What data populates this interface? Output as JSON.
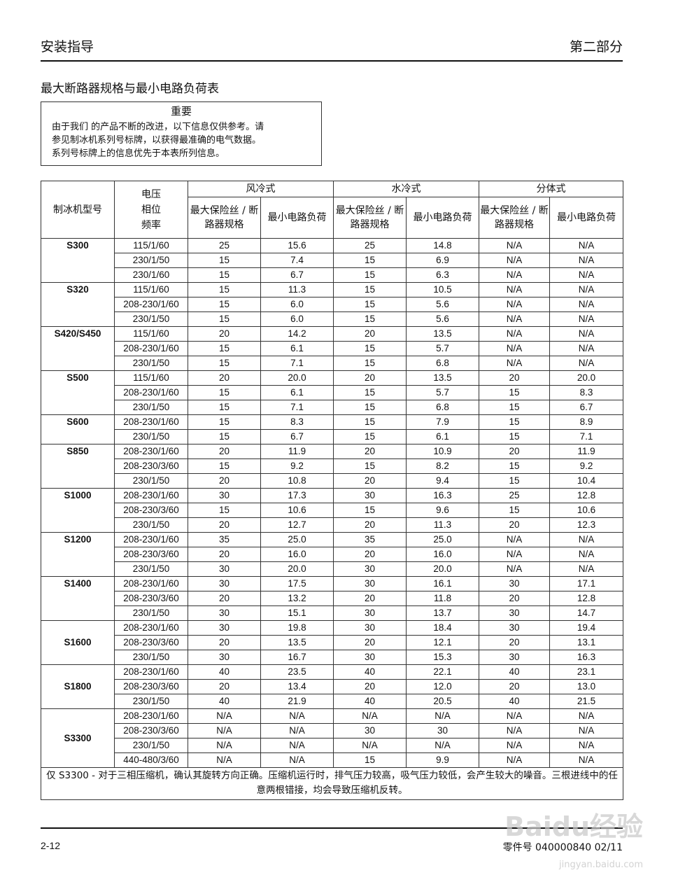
{
  "header": {
    "left": "安装指导",
    "right": "第二部分"
  },
  "title": "最大断路器规格与最小电路负荷表",
  "notice": {
    "heading": "重要",
    "lines": [
      "由于我们 的产品不断的改进，以下信息仅供参考。请",
      "参见制冰机系列号标牌，以获得最准确的电气数据。",
      "系列号标牌上的信息优先于本表所列信息。"
    ]
  },
  "table": {
    "headers": {
      "model": "制冰机型号",
      "voltage": [
        "电压",
        "相位",
        "频率"
      ],
      "groups": [
        "风冷式",
        "水冷式",
        "分体式"
      ],
      "sub": [
        "最大保险丝 / 断路器规格",
        "最小电路负荷",
        "最大保险丝 / 断路器规格",
        "最小电路负荷",
        "最大保险丝 / 断路器规格",
        "最小电路负荷"
      ]
    },
    "models": [
      {
        "model": "S300",
        "rows": [
          [
            "115/1/60",
            "25",
            "15.6",
            "25",
            "14.8",
            "N/A",
            "N/A"
          ],
          [
            "230/1/50",
            "15",
            "7.4",
            "15",
            "6.9",
            "N/A",
            "N/A"
          ],
          [
            "230/1/60",
            "15",
            "6.7",
            "15",
            "6.3",
            "N/A",
            "N/A"
          ]
        ]
      },
      {
        "model": "S320",
        "rows": [
          [
            "115/1/60",
            "15",
            "11.3",
            "15",
            "10.5",
            "N/A",
            "N/A"
          ],
          [
            "208-230/1/60",
            "15",
            "6.0",
            "15",
            "5.6",
            "N/A",
            "N/A"
          ],
          [
            "230/1/50",
            "15",
            "6.0",
            "15",
            "5.6",
            "N/A",
            "N/A"
          ]
        ]
      },
      {
        "model": "S420/S450",
        "rows": [
          [
            "115/1/60",
            "20",
            "14.2",
            "20",
            "13.5",
            "N/A",
            "N/A"
          ],
          [
            "208-230/1/60",
            "15",
            "6.1",
            "15",
            "5.7",
            "N/A",
            "N/A"
          ],
          [
            "230/1/50",
            "15",
            "7.1",
            "15",
            "6.8",
            "N/A",
            "N/A"
          ]
        ]
      },
      {
        "model": "S500",
        "rows": [
          [
            "115/1/60",
            "20",
            "20.0",
            "20",
            "13.5",
            "20",
            "20.0"
          ],
          [
            "208-230/1/60",
            "15",
            "6.1",
            "15",
            "5.7",
            "15",
            "8.3"
          ],
          [
            "230/1/50",
            "15",
            "7.1",
            "15",
            "6.8",
            "15",
            "6.7"
          ]
        ]
      },
      {
        "model": "S600",
        "rows": [
          [
            "208-230/1/60",
            "15",
            "8.3",
            "15",
            "7.9",
            "15",
            "8.9"
          ],
          [
            "230/1/50",
            "15",
            "6.7",
            "15",
            "6.1",
            "15",
            "7.1"
          ]
        ]
      },
      {
        "model": "S850",
        "rows": [
          [
            "208-230/1/60",
            "20",
            "11.9",
            "20",
            "10.9",
            "20",
            "11.9"
          ],
          [
            "208-230/3/60",
            "15",
            "9.2",
            "15",
            "8.2",
            "15",
            "9.2"
          ],
          [
            "230/1/50",
            "20",
            "10.8",
            "20",
            "9.4",
            "15",
            "10.4"
          ]
        ]
      },
      {
        "model": "S1000",
        "rows": [
          [
            "208-230/1/60",
            "30",
            "17.3",
            "30",
            "16.3",
            "25",
            "12.8"
          ],
          [
            "208-230/3/60",
            "15",
            "10.6",
            "15",
            "9.6",
            "15",
            "10.6"
          ],
          [
            "230/1/50",
            "20",
            "12.7",
            "20",
            "11.3",
            "20",
            "12.3"
          ]
        ]
      },
      {
        "model": "S1200",
        "rows": [
          [
            "208-230/1/60",
            "35",
            "25.0",
            "35",
            "25.0",
            "N/A",
            "N/A"
          ],
          [
            "208-230/3/60",
            "20",
            "16.0",
            "20",
            "16.0",
            "N/A",
            "N/A"
          ],
          [
            "230/1/50",
            "30",
            "20.0",
            "30",
            "20.0",
            "N/A",
            "N/A"
          ]
        ]
      },
      {
        "model": "S1400",
        "rows": [
          [
            "208-230/1/60",
            "30",
            "17.5",
            "30",
            "16.1",
            "30",
            "17.1"
          ],
          [
            "208-230/3/60",
            "20",
            "13.2",
            "20",
            "11.8",
            "20",
            "12.8"
          ],
          [
            "230/1/50",
            "30",
            "15.1",
            "30",
            "13.7",
            "30",
            "14.7"
          ]
        ]
      },
      {
        "model": "S1600",
        "rows": [
          [
            "208-230/1/60",
            "30",
            "19.8",
            "30",
            "18.4",
            "30",
            "19.4"
          ],
          [
            "208-230/3/60",
            "20",
            "13.5",
            "20",
            "12.1",
            "20",
            "13.1"
          ],
          [
            "230/1/50",
            "30",
            "16.7",
            "30",
            "15.3",
            "30",
            "16.3"
          ]
        ]
      },
      {
        "model": "S1800",
        "rows": [
          [
            "208-230/1/60",
            "40",
            "23.5",
            "40",
            "22.1",
            "40",
            "23.1"
          ],
          [
            "208-230/3/60",
            "20",
            "13.4",
            "20",
            "12.0",
            "20",
            "13.0"
          ],
          [
            "230/1/50",
            "40",
            "21.9",
            "40",
            "20.5",
            "40",
            "21.5"
          ]
        ]
      },
      {
        "model": "S3300",
        "rows": [
          [
            "208-230/1/60",
            "N/A",
            "N/A",
            "N/A",
            "N/A",
            "N/A",
            "N/A"
          ],
          [
            "208-230/3/60",
            "N/A",
            "N/A",
            "30",
            "30",
            "N/A",
            "N/A"
          ],
          [
            "230/1/50",
            "N/A",
            "N/A",
            "N/A",
            "N/A",
            "N/A",
            "N/A"
          ],
          [
            "440-480/3/60",
            "N/A",
            "N/A",
            "15",
            "9.9",
            "N/A",
            "N/A"
          ]
        ]
      }
    ],
    "note": "仅 S3300 - 对于三相压缩机，确认其旋转方向正确。压缩机运行时，排气压力较高，吸气压力较低，会产生较大的噪音。三根进线中的任意两根错接，均会导致压缩机反转。"
  },
  "footer": {
    "page": "2-12",
    "part": "零件号 040000840 02/11"
  },
  "watermark": {
    "logo": "Baidu经验",
    "url": "jingyan.baidu.com"
  }
}
